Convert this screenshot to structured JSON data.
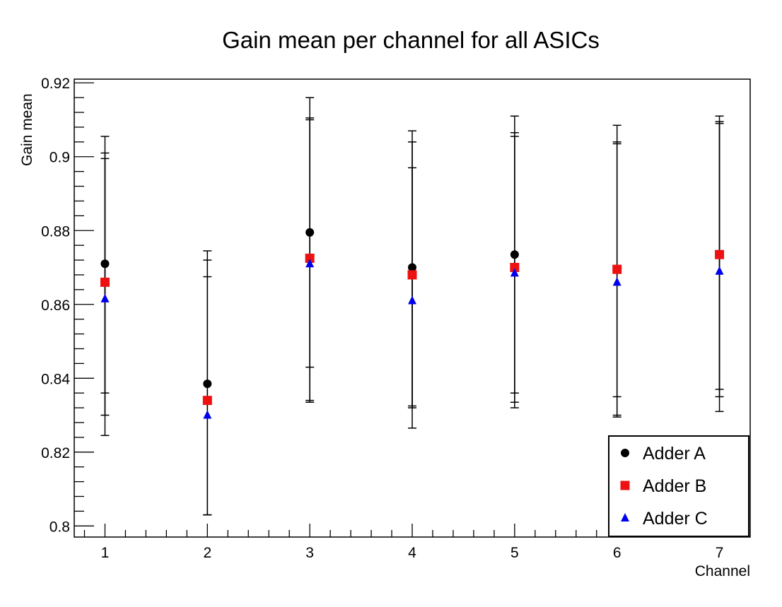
{
  "chart_data": {
    "type": "scatter",
    "title": "Gain mean per channel for all ASICs",
    "xlabel": "Channel",
    "ylabel": "Gain mean",
    "xlim": [
      0.7,
      7.3
    ],
    "ylim": [
      0.797,
      0.921
    ],
    "x_ticks": [
      1,
      2,
      3,
      4,
      5,
      6,
      7
    ],
    "y_ticks": [
      0.8,
      0.82,
      0.84,
      0.86,
      0.88,
      0.9,
      0.92
    ],
    "legend_position": "bottom-right",
    "grid": false,
    "series": [
      {
        "name": "Adder A",
        "marker": "circle",
        "color": "#000000",
        "points": [
          {
            "x": 1,
            "y": 0.871,
            "lo": 0.836,
            "hi": 0.901
          },
          {
            "x": 2,
            "y": 0.8385,
            "lo": 0.803,
            "hi": 0.8745
          },
          {
            "x": 3,
            "y": 0.8795,
            "lo": 0.843,
            "hi": 0.916
          },
          {
            "x": 4,
            "y": 0.87,
            "lo": 0.8325,
            "hi": 0.907
          },
          {
            "x": 5,
            "y": 0.8735,
            "lo": 0.836,
            "hi": 0.911
          },
          {
            "x": 6,
            "y": 0.8695,
            "lo": 0.835,
            "hi": 0.904
          },
          {
            "x": 7,
            "y": 0.8735,
            "lo": 0.837,
            "hi": 0.911
          }
        ]
      },
      {
        "name": "Adder B",
        "marker": "square",
        "color": "#ee1111",
        "points": [
          {
            "x": 1,
            "y": 0.866,
            "lo": 0.83,
            "hi": 0.8995
          },
          {
            "x": 2,
            "y": 0.834,
            "lo": 0.803,
            "hi": 0.872
          },
          {
            "x": 3,
            "y": 0.8725,
            "lo": 0.834,
            "hi": 0.9105
          },
          {
            "x": 4,
            "y": 0.868,
            "lo": 0.832,
            "hi": 0.904
          },
          {
            "x": 5,
            "y": 0.87,
            "lo": 0.8335,
            "hi": 0.9055
          },
          {
            "x": 6,
            "y": 0.8695,
            "lo": 0.83,
            "hi": 0.9085
          },
          {
            "x": 7,
            "y": 0.8735,
            "lo": 0.835,
            "hi": 0.909
          }
        ]
      },
      {
        "name": "Adder C",
        "marker": "triangle",
        "color": "#0000ee",
        "points": [
          {
            "x": 1,
            "y": 0.8615,
            "lo": 0.8245,
            "hi": 0.9055
          },
          {
            "x": 2,
            "y": 0.83,
            "lo": 0.803,
            "hi": 0.8675
          },
          {
            "x": 3,
            "y": 0.871,
            "lo": 0.8335,
            "hi": 0.91
          },
          {
            "x": 4,
            "y": 0.861,
            "lo": 0.8265,
            "hi": 0.897
          },
          {
            "x": 5,
            "y": 0.8685,
            "lo": 0.832,
            "hi": 0.9065
          },
          {
            "x": 6,
            "y": 0.866,
            "lo": 0.8295,
            "hi": 0.9035
          },
          {
            "x": 7,
            "y": 0.869,
            "lo": 0.831,
            "hi": 0.9095
          }
        ]
      }
    ]
  }
}
